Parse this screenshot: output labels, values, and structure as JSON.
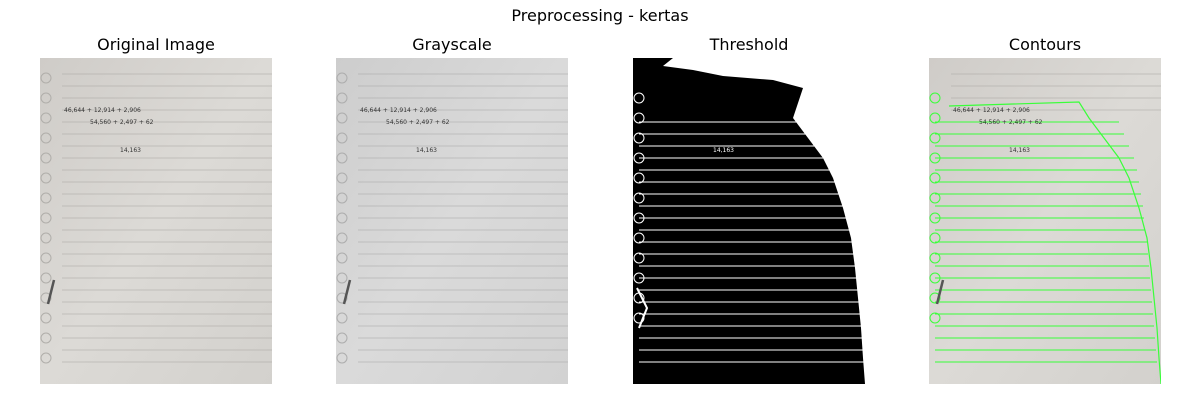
{
  "figure": {
    "title": "Preprocessing - kertas"
  },
  "panels": [
    {
      "title": "Original Image"
    },
    {
      "title": "Grayscale"
    },
    {
      "title": "Threshold"
    },
    {
      "title": "Contours"
    }
  ],
  "handwriting": {
    "line1": "46,644 + 12,914 + 2,906",
    "line2": "54,560 + 2,497 + 62",
    "line3": "14,163"
  },
  "colors": {
    "paper": "#d9d7d3",
    "paper_gray": "#d8d8d8",
    "rule_line": "#9a9a9a",
    "contour": "#39ff39",
    "threshold_dark": "#000000",
    "threshold_light": "#ffffff"
  }
}
